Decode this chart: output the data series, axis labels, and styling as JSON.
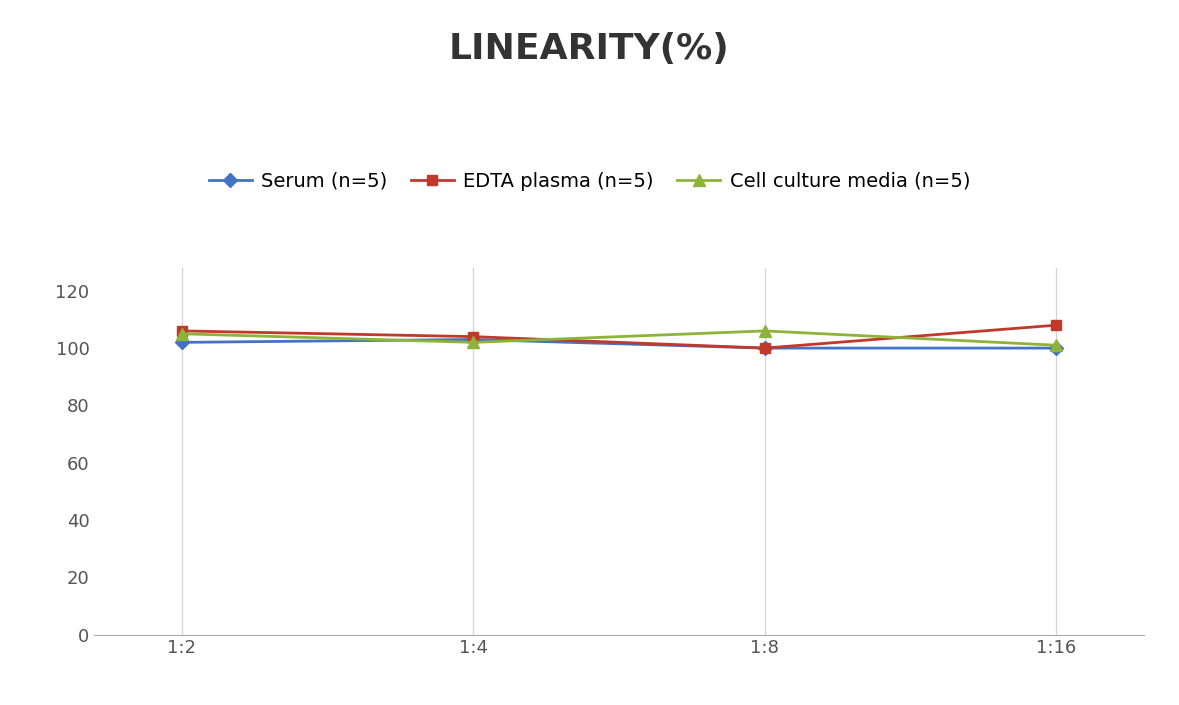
{
  "title": "LINEARITY(%)",
  "x_labels": [
    "1:2",
    "1:4",
    "1:8",
    "1:16"
  ],
  "x_positions": [
    0,
    1,
    2,
    3
  ],
  "series": [
    {
      "label": "Serum (n=5)",
      "values": [
        102,
        103,
        100,
        100
      ],
      "color": "#4472C4",
      "marker": "D",
      "marker_size": 7
    },
    {
      "label": "EDTA plasma (n=5)",
      "values": [
        106,
        104,
        100,
        108
      ],
      "color": "#C0392B",
      "marker": "s",
      "marker_size": 7
    },
    {
      "label": "Cell culture media (n=5)",
      "values": [
        105,
        102,
        106,
        101
      ],
      "color": "#8DB33A",
      "marker": "^",
      "marker_size": 8
    }
  ],
  "ylim": [
    0,
    128
  ],
  "yticks": [
    0,
    20,
    40,
    60,
    80,
    100,
    120
  ],
  "grid_color": "#D5D5D5",
  "background_color": "#FFFFFF",
  "title_fontsize": 26,
  "legend_fontsize": 14,
  "tick_fontsize": 13,
  "linewidth": 2.0
}
